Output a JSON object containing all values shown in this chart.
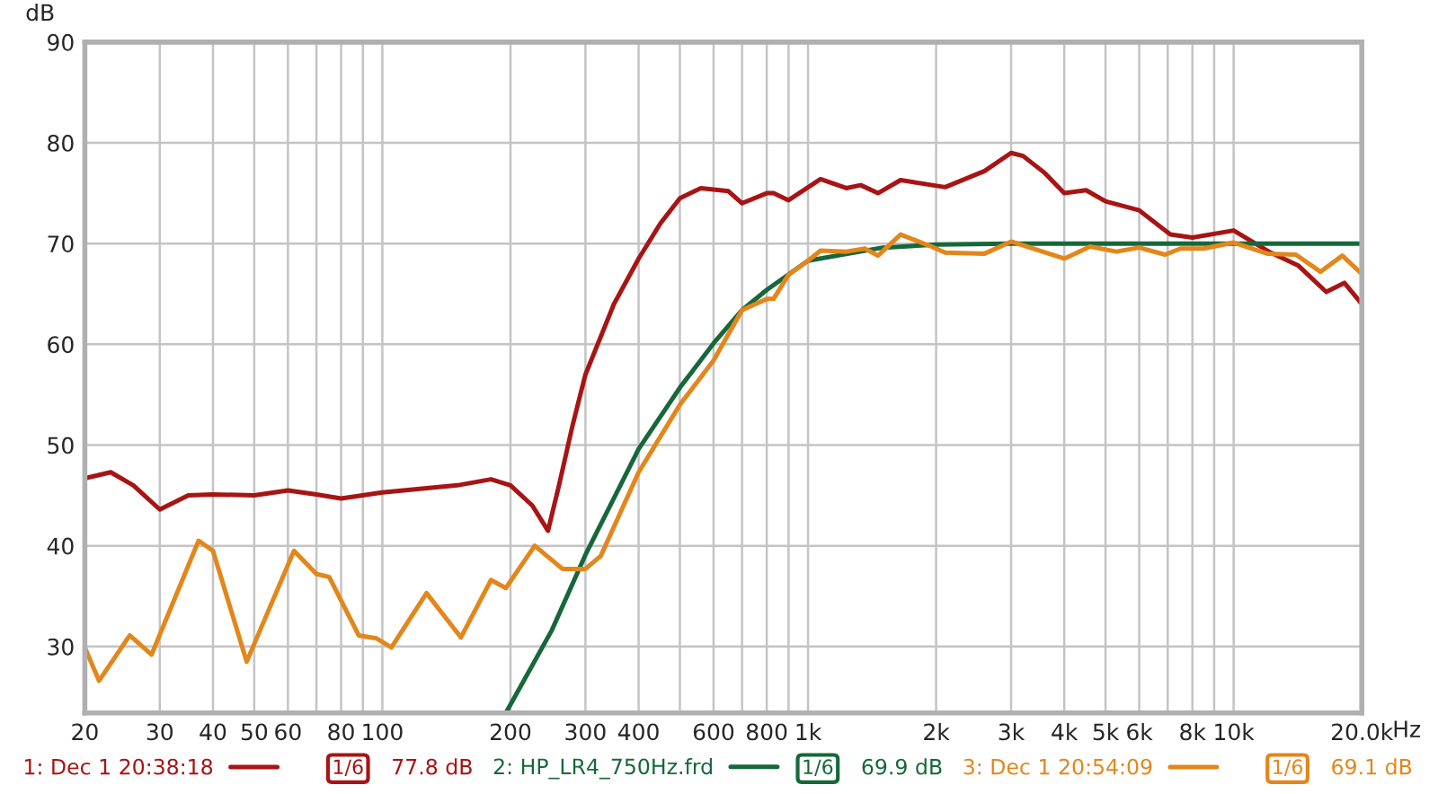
{
  "chart_data": {
    "type": "line",
    "ylabel": "dB",
    "xlabel": "Hz",
    "xlim": [
      20,
      20000
    ],
    "ylim": [
      23.4,
      90
    ],
    "log": "x",
    "grid": true,
    "legend": "bottom",
    "line_style": "solid",
    "xticks": [
      20,
      30,
      40,
      50,
      60,
      {
        "value": 70,
        "label": null
      },
      80,
      {
        "value": 90,
        "label": null
      },
      100,
      200,
      300,
      400,
      {
        "value": 500,
        "label": null
      },
      600,
      {
        "value": 700,
        "label": null
      },
      800,
      {
        "value": 900,
        "label": null
      },
      {
        "value": 1000,
        "label": "1k"
      },
      {
        "value": 2000,
        "label": "2k"
      },
      {
        "value": 3000,
        "label": "3k"
      },
      {
        "value": 4000,
        "label": "4k"
      },
      {
        "value": 5000,
        "label": "5k"
      },
      {
        "value": 6000,
        "label": "6k"
      },
      {
        "value": 7000,
        "label": null
      },
      {
        "value": 8000,
        "label": "8k"
      },
      {
        "value": 9000,
        "label": null
      },
      {
        "value": 10000,
        "label": "10k"
      },
      {
        "value": 20000,
        "label": "20.0k"
      }
    ],
    "yticks": [
      30,
      40,
      50,
      60,
      70,
      80,
      90
    ],
    "series": [
      {
        "name": "1: Dec 1 20:38:18",
        "color": "#a81414",
        "x": [
          20,
          23,
          26,
          30,
          35,
          40,
          50,
          60,
          70,
          80,
          100,
          150,
          180,
          200,
          225,
          245,
          260,
          280,
          300,
          350,
          400,
          450,
          500,
          560,
          650,
          700,
          800,
          830,
          900,
          1070,
          1230,
          1330,
          1460,
          1650,
          2100,
          2600,
          3000,
          3200,
          3600,
          4000,
          4500,
          5000,
          6000,
          7100,
          8000,
          10000,
          12100,
          14200,
          16500,
          18200,
          20000
        ],
        "values": [
          46.7,
          47.3,
          46.0,
          43.6,
          45.0,
          45.1,
          45.0,
          45.5,
          45.1,
          44.7,
          45.3,
          46.0,
          46.6,
          46.0,
          44.0,
          41.5,
          46.0,
          52.0,
          57.0,
          64.0,
          68.5,
          72.0,
          74.5,
          75.5,
          75.2,
          74.0,
          75.0,
          75.0,
          74.3,
          76.4,
          75.5,
          75.8,
          75.0,
          76.3,
          75.6,
          77.2,
          79.0,
          78.7,
          77.0,
          75.0,
          75.3,
          74.2,
          73.3,
          70.9,
          70.6,
          71.3,
          69.2,
          67.8,
          65.2,
          66.1,
          64.0
        ]
      },
      {
        "name": "2: HP_LR4_750Hz.frd",
        "color": "#16683a",
        "x": [
          195,
          250,
          300,
          400,
          500,
          600,
          700,
          800,
          1000,
          1500,
          2000,
          3000,
          5000,
          10000,
          20000
        ],
        "values": [
          23.4,
          31.6,
          39.1,
          49.6,
          55.7,
          60.1,
          63.4,
          65.4,
          68.3,
          69.6,
          69.9,
          70.0,
          70.0,
          70.0,
          70.0
        ]
      },
      {
        "name": "3: Dec 1 20:54:09",
        "color": "#e3861b",
        "x": [
          20,
          21.6,
          25.5,
          28.7,
          37,
          40,
          48,
          62,
          70,
          75,
          88,
          97,
          105,
          127,
          153,
          180,
          195,
          228,
          265,
          300,
          326,
          400,
          500,
          600,
          700,
          800,
          830,
          900,
          1000,
          1070,
          1230,
          1360,
          1460,
          1650,
          1950,
          2100,
          2600,
          3000,
          4000,
          4600,
          5300,
          6000,
          6900,
          7500,
          8500,
          10000,
          12000,
          14000,
          16000,
          18000,
          20000
        ],
        "values": [
          29.9,
          26.6,
          31.1,
          29.2,
          40.5,
          39.5,
          28.5,
          39.5,
          37.2,
          36.9,
          31.1,
          30.8,
          29.9,
          35.3,
          30.9,
          36.6,
          35.8,
          40.0,
          37.7,
          37.7,
          39.0,
          47.3,
          54.0,
          58.4,
          63.4,
          64.5,
          64.5,
          66.9,
          68.3,
          69.3,
          69.2,
          69.5,
          68.8,
          70.9,
          69.7,
          69.1,
          69.0,
          70.2,
          68.5,
          69.7,
          69.2,
          69.6,
          68.9,
          69.5,
          69.5,
          70.1,
          69.0,
          68.9,
          67.2,
          68.8,
          67.0
        ]
      }
    ],
    "annotations": [
      "1/6",
      "77.8 dB",
      "1/6",
      "69.9 dB",
      "1/6",
      "69.1 dB"
    ]
  }
}
